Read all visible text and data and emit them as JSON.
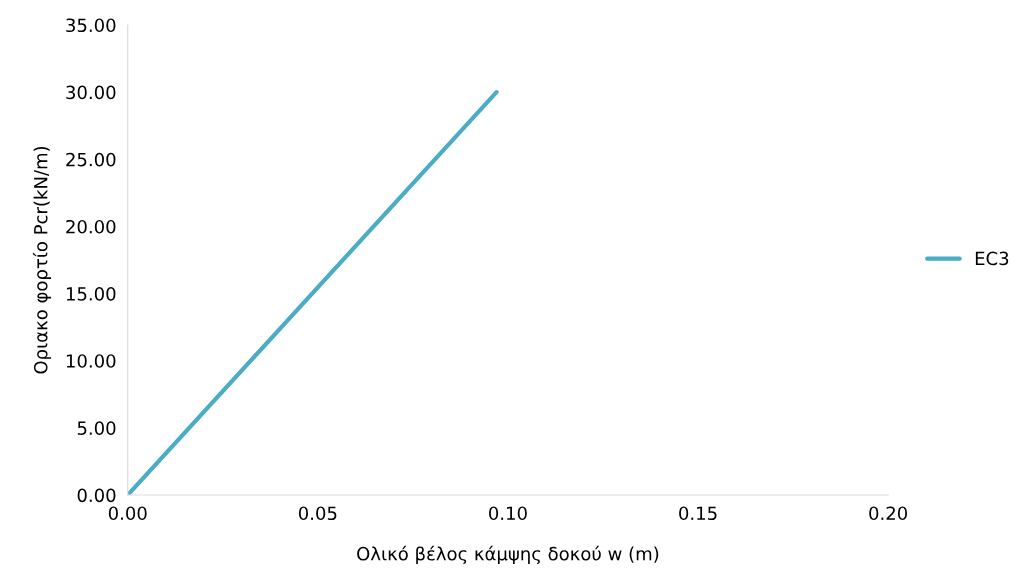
{
  "chart_data": {
    "type": "line",
    "xlabel": "Ολικό βέλος κάμψης δοκού w (m)",
    "ylabel": "Οριακο φορτίο Pcr(kN/m)",
    "x": [
      0,
      0.097
    ],
    "series": [
      {
        "name": "EC3",
        "color": "#4bacc6",
        "values": [
          0,
          30
        ]
      }
    ],
    "xlim": [
      0,
      0.2
    ],
    "xticks": [
      {
        "value": 0,
        "label": "0.00"
      },
      {
        "value": 0.05,
        "label": "0.05"
      },
      {
        "value": 0.1,
        "label": "0.10"
      },
      {
        "value": 0.15,
        "label": "0.15"
      },
      {
        "value": 0.2,
        "label": "0.20"
      }
    ],
    "ylim": [
      0,
      35
    ],
    "yticks": [
      {
        "value": 0,
        "label": "0.00"
      },
      {
        "value": 5,
        "label": "5.00"
      },
      {
        "value": 10,
        "label": "10.00"
      },
      {
        "value": 15,
        "label": "15.00"
      },
      {
        "value": 20,
        "label": "20.00"
      },
      {
        "value": 25,
        "label": "25.00"
      },
      {
        "value": 30,
        "label": "30.00"
      },
      {
        "value": 35,
        "label": "35.00"
      }
    ],
    "legend": "right",
    "grid": false,
    "marker": "none",
    "line_style": "solid"
  }
}
